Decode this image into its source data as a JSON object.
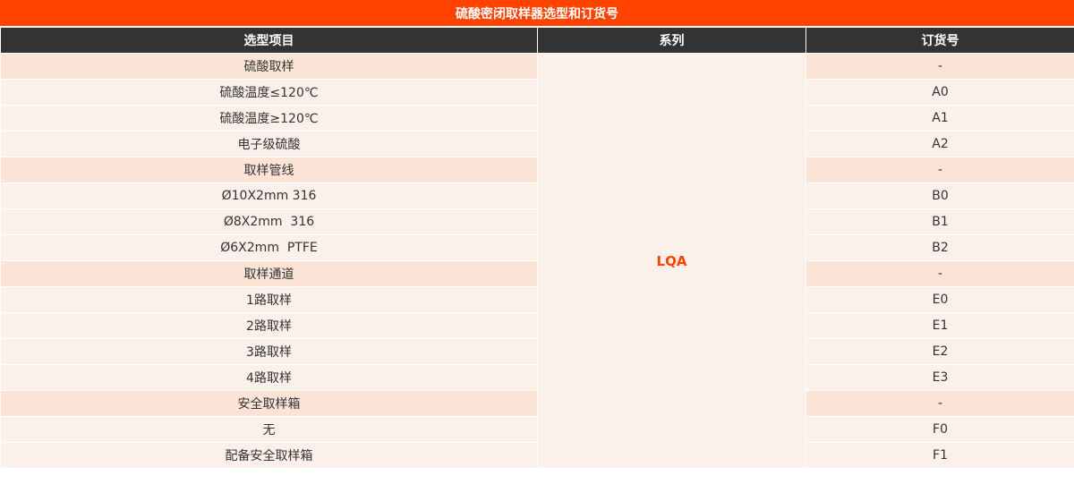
{
  "title": "硫酸密闭取样器选型和订货号",
  "headers": [
    "选型项目",
    "系列",
    "订货号"
  ],
  "series": "LQA",
  "rows": [
    {
      "item": "硫酸取样",
      "code": "-",
      "section": true
    },
    {
      "item": "硫酸温度≤120℃",
      "code": "A0",
      "section": false
    },
    {
      "item": "硫酸温度≥120℃",
      "code": "A1",
      "section": false
    },
    {
      "item": "电子级硫酸",
      "code": "A2",
      "section": false
    },
    {
      "item": "取样管线",
      "code": "-",
      "section": true
    },
    {
      "item": "Ø10X2mm 316",
      "code": "B0",
      "section": false
    },
    {
      "item": "Ø8X2mm  316",
      "code": "B1",
      "section": false
    },
    {
      "item": "Ø6X2mm  PTFE",
      "code": "B2",
      "section": false
    },
    {
      "item": "取样通道",
      "code": "-",
      "section": true
    },
    {
      "item": "1路取样",
      "code": "E0",
      "section": false
    },
    {
      "item": "2路取样",
      "code": "E1",
      "section": false
    },
    {
      "item": "3路取样",
      "code": "E2",
      "section": false
    },
    {
      "item": "4路取样",
      "code": "E3",
      "section": false
    },
    {
      "item": "安全取样箱",
      "code": "-",
      "section": true
    },
    {
      "item": "无",
      "code": "F0",
      "section": false
    },
    {
      "item": "配备安全取样箱",
      "code": "F1",
      "section": false
    }
  ],
  "colors": {
    "title_bg": "#ff4200",
    "header_bg": "#333333",
    "section_bg": "#fbe3d6",
    "row_bg": "#fcf0ea",
    "accent": "#ff4200"
  }
}
